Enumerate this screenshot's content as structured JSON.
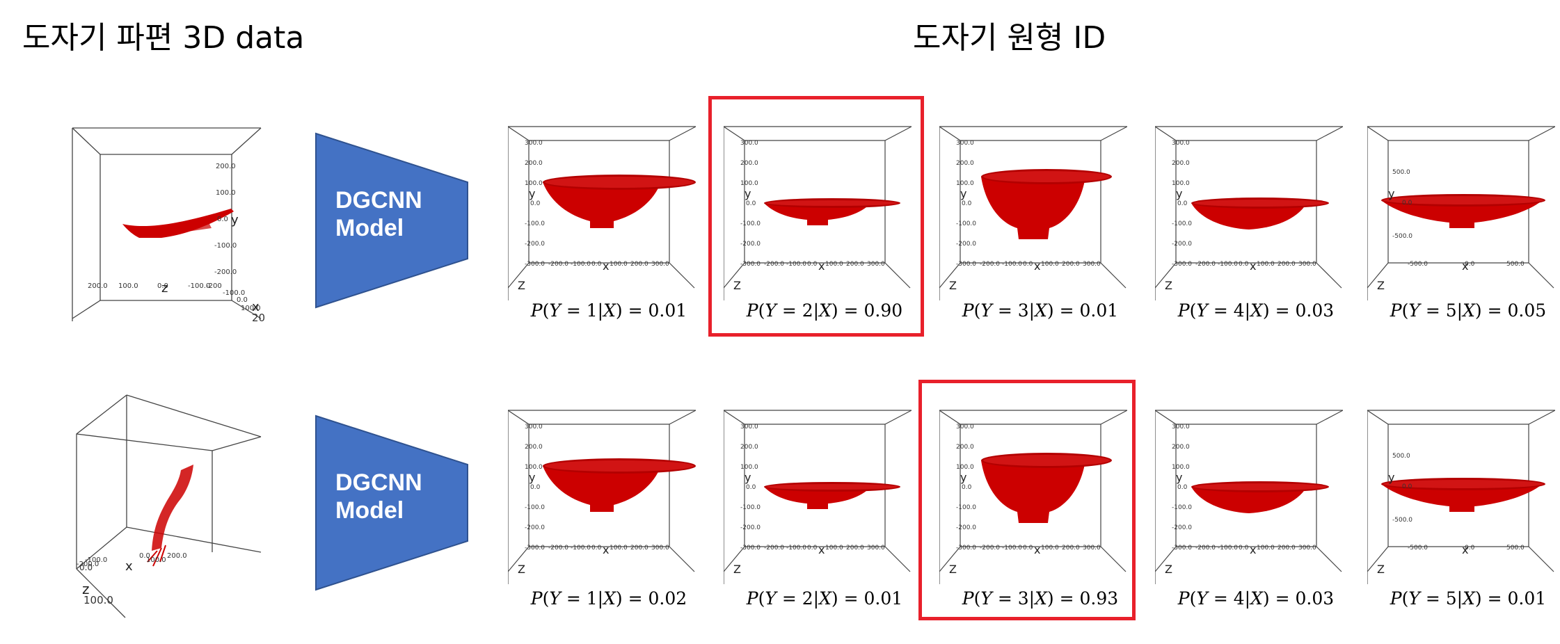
{
  "titles": {
    "left": "도자기 파편 3D data",
    "right": "도자기 원형 ID"
  },
  "colors": {
    "model_fill": "#4472c4",
    "bowl": "#cc0000",
    "highlight": "#e8202b"
  },
  "model": {
    "line1": "DGCNN",
    "line2": "Model"
  },
  "fragment_plots": [
    {
      "labels": {
        "y": "y",
        "x": "x",
        "z": "z"
      },
      "ticks": [
        "200.0",
        "100.0",
        "0.0",
        "-100.0",
        "-200.0",
        "200.0",
        "100.0",
        "0.0",
        "-100.0",
        "-200",
        "-100.0",
        "0.0",
        "100.0",
        "200"
      ]
    },
    {
      "labels": {
        "x": "x",
        "z": "z"
      },
      "ticks": [
        "-200.0",
        "-100.0",
        "0.0",
        "100.0",
        "200.0",
        "100.0",
        "0.0"
      ]
    }
  ],
  "rows": [
    {
      "highlight_index": 1,
      "cells": [
        {
          "class": "1",
          "prob": "0.01",
          "shape": "bowl",
          "ticks": [
            "300.0",
            "200.0",
            "100.0",
            "0.0",
            "-100.0",
            "-200.0",
            "-300.0",
            "-200.0",
            "-100.0",
            "0.0",
            "100.0",
            "200.0",
            "300.0"
          ]
        },
        {
          "class": "2",
          "prob": "0.90",
          "shape": "dish",
          "ticks": [
            "300.0",
            "200.0",
            "100.0",
            "0.0",
            "-100.0",
            "-200.0",
            "-300.0",
            "-200.0",
            "-100.0",
            "0.0",
            "100.0",
            "200.0",
            "300.0"
          ]
        },
        {
          "class": "3",
          "prob": "0.01",
          "shape": "deep",
          "ticks": [
            "300.0",
            "200.0",
            "100.0",
            "0.0",
            "-100.0",
            "-200.0",
            "-300.0",
            "-200.0",
            "-100.0",
            "0.0",
            "100.0",
            "200.0",
            "300.0"
          ]
        },
        {
          "class": "4",
          "prob": "0.03",
          "shape": "shallow",
          "ticks": [
            "300.0",
            "200.0",
            "100.0",
            "0.0",
            "-100.0",
            "-200.0",
            "-300.0",
            "-200.0",
            "-100.0",
            "0.0",
            "100.0",
            "200.0",
            "300.0"
          ]
        },
        {
          "class": "5",
          "prob": "0.05",
          "shape": "plate",
          "ticks": [
            "500.0",
            "0.0",
            "-500.0",
            "-500.0",
            "0.0",
            "500.0"
          ]
        }
      ]
    },
    {
      "highlight_index": 2,
      "cells": [
        {
          "class": "1",
          "prob": "0.02",
          "shape": "bowl",
          "ticks": [
            "300.0",
            "200.0",
            "100.0",
            "0.0",
            "-100.0",
            "-200.0",
            "-300.0",
            "-200.0",
            "-100.0",
            "0.0",
            "100.0",
            "200.0",
            "300.0"
          ]
        },
        {
          "class": "2",
          "prob": "0.01",
          "shape": "dish",
          "ticks": [
            "300.0",
            "200.0",
            "100.0",
            "0.0",
            "-100.0",
            "-200.0",
            "-300.0",
            "-200.0",
            "-100.0",
            "0.0",
            "100.0",
            "200.0",
            "300.0"
          ]
        },
        {
          "class": "3",
          "prob": "0.93",
          "shape": "deep",
          "ticks": [
            "300.0",
            "200.0",
            "100.0",
            "0.0",
            "-100.0",
            "-200.0",
            "-300.0",
            "-200.0",
            "-100.0",
            "0.0",
            "100.0",
            "200.0",
            "300.0"
          ]
        },
        {
          "class": "4",
          "prob": "0.03",
          "shape": "shallow",
          "ticks": [
            "300.0",
            "200.0",
            "100.0",
            "0.0",
            "-100.0",
            "-200.0",
            "-300.0",
            "-200.0",
            "-100.0",
            "0.0",
            "100.0",
            "200.0",
            "300.0"
          ]
        },
        {
          "class": "5",
          "prob": "0.01",
          "shape": "plate",
          "ticks": [
            "500.0",
            "0.0",
            "-500.0",
            "-500.0",
            "0.0",
            "500.0"
          ]
        }
      ]
    }
  ],
  "axis_letters": {
    "y": "y",
    "x": "x",
    "z": "Z"
  }
}
